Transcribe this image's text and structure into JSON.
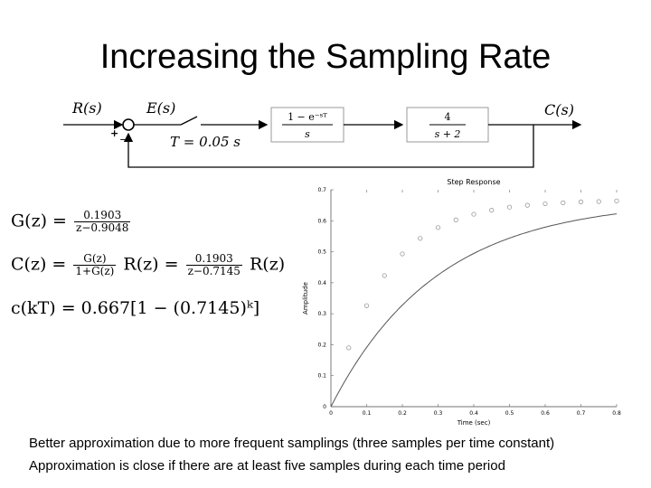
{
  "title": "Increasing the Sampling Rate",
  "diagram": {
    "r_label": "R(s)",
    "e_label": "E(s)",
    "c_label": "C(s)",
    "plus": "+",
    "minus": "−",
    "t_label": "T = 0.05 s",
    "zoh_num": "1 − e⁻ˢᵀ",
    "zoh_den": "s",
    "plant_num": "4",
    "plant_den": "s + 2"
  },
  "equations": {
    "g_lhs": "G(z) =",
    "g_num": "0.1903",
    "g_den": "z−0.9048",
    "c_lhs": "C(z) =",
    "c_num1": "G(z)",
    "c_den1": "1+G(z)",
    "c_mid": "R(z) =",
    "c_num2": "0.1903",
    "c_den2": "z−0.7145",
    "c_rhs": "R(z)",
    "ck": "c(kT) = 0.667[1 − (0.7145)ᵏ]"
  },
  "chart_data": {
    "type": "scatter",
    "title": "Step Response",
    "xlabel": "Time (sec)",
    "ylabel": "Amplitude",
    "xlim": [
      0,
      0.8
    ],
    "ylim": [
      0,
      0.7
    ],
    "xticks": [
      "0",
      "0.1",
      "0.2",
      "0.3",
      "0.4",
      "0.5",
      "0.6",
      "0.7",
      "0.8"
    ],
    "yticks": [
      "0",
      "0.1",
      "0.2",
      "0.3",
      "0.4",
      "0.5",
      "0.6",
      "0.7"
    ],
    "continuous_gain": 0.667,
    "continuous_rate": 3.38,
    "samples": {
      "x": [
        0.05,
        0.1,
        0.15,
        0.2,
        0.25,
        0.3,
        0.35,
        0.4,
        0.45,
        0.5,
        0.55,
        0.6,
        0.65,
        0.7,
        0.75,
        0.8
      ],
      "y": [
        0.19,
        0.326,
        0.423,
        0.493,
        0.543,
        0.578,
        0.603,
        0.621,
        0.634,
        0.644,
        0.65,
        0.655,
        0.658,
        0.661,
        0.662,
        0.664
      ]
    },
    "grid": false,
    "marker_color": "#999999",
    "line_color": "#555555"
  },
  "notes": [
    "Better approximation due to more frequent samplings (three samples per time constant)",
    "Approximation is close if there are at least five samples during each time period"
  ]
}
